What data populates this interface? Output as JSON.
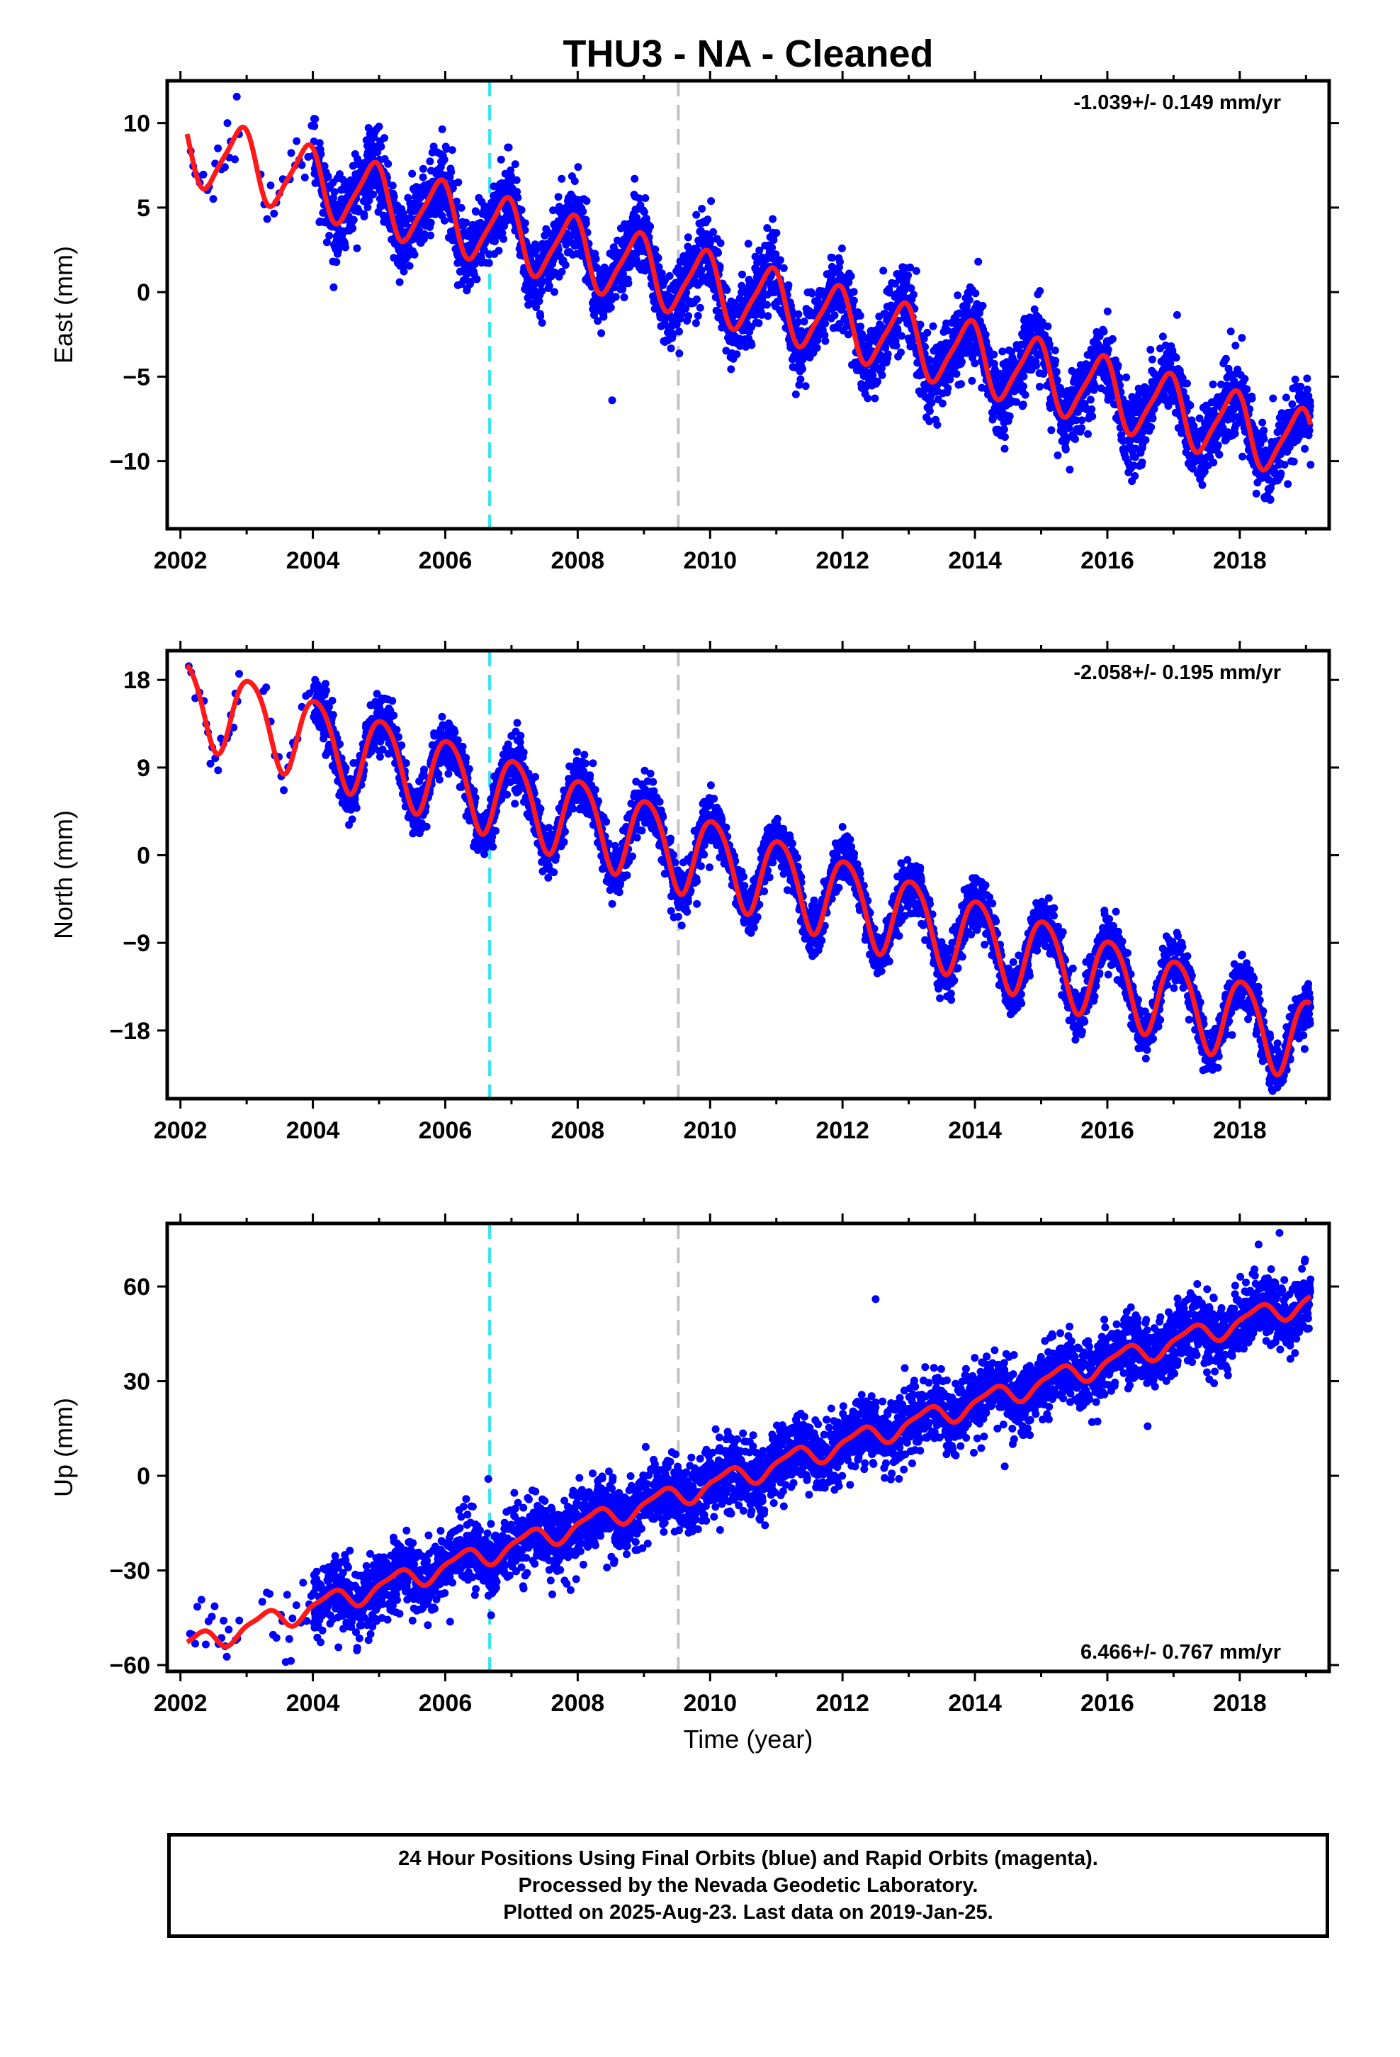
{
  "title": "THU3  - NA - Cleaned",
  "colors": {
    "points": "#0000ff",
    "fit": "#ff1a1a",
    "break_cyan": "#33e6ee",
    "break_gray": "#c4c4c4",
    "frame": "#000000"
  },
  "breaks": [
    {
      "x": 2006.67,
      "color": "cyan"
    },
    {
      "x": 2009.52,
      "color": "gray"
    }
  ],
  "chart_data": [
    {
      "type": "scatter",
      "ylabel": "East (mm)",
      "xlabel": "",
      "annotation": "-1.039+/- 0.149 mm/yr",
      "annotation_position": "top-right",
      "xlim": [
        2001.8,
        2019.35
      ],
      "ylim": [
        -14,
        12.5
      ],
      "xticks": [
        2002,
        2004,
        2006,
        2008,
        2010,
        2012,
        2014,
        2016,
        2018
      ],
      "xtick_labels": [
        "2002",
        "2004",
        "2006",
        "2008",
        "2010",
        "2012",
        "2014",
        "2016",
        "2018"
      ],
      "yticks": [
        -10,
        -5,
        0,
        5,
        10
      ],
      "ytick_labels": [
        "−10",
        "−5",
        "0",
        "5",
        "10"
      ],
      "model": {
        "t0": 2002.1,
        "y0": 8.5,
        "rate": -1.039,
        "amp_ann": 2.0,
        "phase_ann": 0.35,
        "amp_semi": 0.4,
        "phase_semi": 0.1,
        "noise": 1.1,
        "t_end": 2019.07
      },
      "outliers": [
        [
          2008.52,
          -6.4
        ],
        [
          2014.05,
          1.8
        ]
      ],
      "gaps": [
        [
          2002.9,
          2003.2
        ]
      ],
      "sparse_until": 2004.0
    },
    {
      "type": "scatter",
      "ylabel": "North (mm)",
      "xlabel": "",
      "annotation": "-2.058+/- 0.195 mm/yr",
      "annotation_position": "top-right",
      "xlim": [
        2001.8,
        2019.35
      ],
      "ylim": [
        -25,
        21
      ],
      "xticks": [
        2002,
        2004,
        2006,
        2008,
        2010,
        2012,
        2014,
        2016,
        2018
      ],
      "xtick_labels": [
        "2002",
        "2004",
        "2006",
        "2008",
        "2010",
        "2012",
        "2014",
        "2016",
        "2018"
      ],
      "yticks": [
        -18,
        -9,
        0,
        9,
        18
      ],
      "ytick_labels": [
        "−18",
        "−9",
        "0",
        "9",
        "18"
      ],
      "model": {
        "t0": 2002.1,
        "y0": 16.0,
        "rate": -2.058,
        "amp_ann": 4.2,
        "phase_ann": 0.2,
        "amp_semi": 0.5,
        "phase_semi": 0.3,
        "noise": 1.3,
        "t_end": 2019.07
      },
      "outliers": [
        [
          2009.8,
          -5.0
        ],
        [
          2016.6,
          -20.0
        ]
      ],
      "gaps": [
        [
          2002.9,
          2003.2
        ]
      ],
      "sparse_until": 2004.0
    },
    {
      "type": "scatter",
      "ylabel": "Up (mm)",
      "xlabel": "Time (year)",
      "annotation": "6.466+/- 0.767 mm/yr",
      "annotation_position": "bottom-right",
      "xlim": [
        2001.8,
        2019.35
      ],
      "ylim": [
        -62,
        80
      ],
      "xticks": [
        2002,
        2004,
        2006,
        2008,
        2010,
        2012,
        2014,
        2016,
        2018
      ],
      "xtick_labels": [
        "2002",
        "2004",
        "2006",
        "2008",
        "2010",
        "2012",
        "2014",
        "2016",
        "2018"
      ],
      "yticks": [
        -60,
        -30,
        0,
        30,
        60
      ],
      "ytick_labels": [
        "−60",
        "−30",
        "0",
        "30",
        "60"
      ],
      "model": {
        "t0": 2002.1,
        "y0": -54,
        "rate": 6.466,
        "amp_ann": 3.2,
        "phase_ann": 0.0,
        "amp_semi": 1.0,
        "phase_semi": 0.2,
        "noise": 5.5,
        "t_end": 2019.07
      },
      "outliers": [
        [
          2012.5,
          56.0
        ],
        [
          2014.45,
          3.0
        ],
        [
          2018.6,
          77.0
        ],
        [
          2006.65,
          -1.0
        ]
      ],
      "gaps": [
        [
          2002.9,
          2003.2
        ]
      ],
      "sparse_until": 2004.0
    }
  ],
  "footer": {
    "line1": "24 Hour Positions Using Final Orbits (blue) and Rapid Orbits (magenta).",
    "line2": "Processed by the Nevada Geodetic Laboratory.",
    "line3": "Plotted on 2025-Aug-23. Last data on 2019-Jan-25."
  }
}
